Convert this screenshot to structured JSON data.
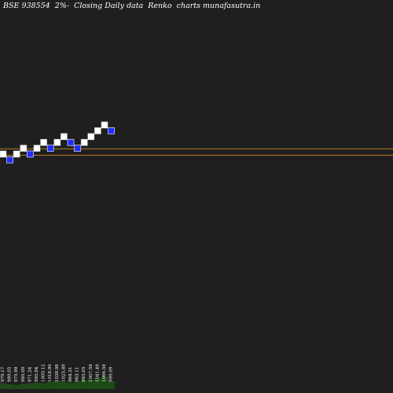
{
  "chart_data": {
    "type": "renko",
    "title": "BSE 938554  2%-  Closing Daily data  Renko  charts munafasutra.in",
    "colors": {
      "background": "#1f1f1f",
      "up_brick": "#ffffff",
      "down_brick": "#1f2fff",
      "reference_line": "#b87a1e",
      "volume": "#1e4a18"
    },
    "bricks": [
      {
        "dir": "up",
        "level": 0
      },
      {
        "dir": "down",
        "level": -1
      },
      {
        "dir": "up",
        "level": 0
      },
      {
        "dir": "up",
        "level": 1
      },
      {
        "dir": "down",
        "level": 0
      },
      {
        "dir": "up",
        "level": 1
      },
      {
        "dir": "up",
        "level": 2
      },
      {
        "dir": "down",
        "level": 1
      },
      {
        "dir": "up",
        "level": 2
      },
      {
        "dir": "up",
        "level": 3
      },
      {
        "dir": "down",
        "level": 2
      },
      {
        "dir": "down",
        "level": 1
      },
      {
        "dir": "up",
        "level": 2
      },
      {
        "dir": "up",
        "level": 3
      },
      {
        "dir": "up",
        "level": 4
      },
      {
        "dir": "up",
        "level": 5
      },
      {
        "dir": "down",
        "level": 4
      }
    ],
    "reference_levels": [
      -0.2,
      0.9
    ],
    "price_labels": [
      "979.17",
      "989.05",
      "975.99",
      "995.09",
      "971.24",
      "995.94",
      "1000.12",
      "1018.90",
      "1038.98",
      "1025.89",
      "964.31",
      "963.11",
      "983.05",
      "1007.59",
      "1041.49",
      "1066.59",
      "999.09"
    ],
    "volume": [
      10,
      8,
      7,
      9,
      10,
      11,
      10,
      12,
      14,
      12,
      11,
      13,
      15,
      16,
      18,
      21,
      13
    ]
  }
}
